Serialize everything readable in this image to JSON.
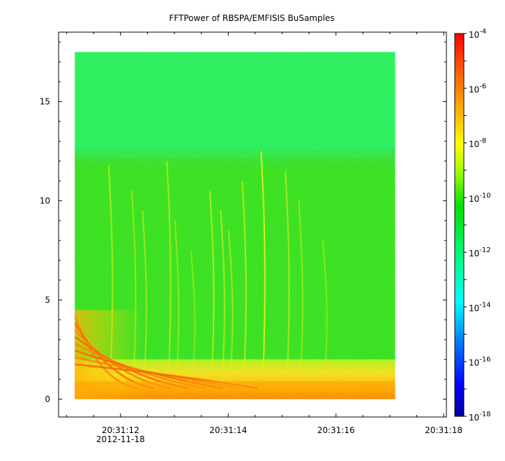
{
  "chart_data": {
    "type": "heatmap",
    "title": "FFTPower of RBSPA/EMFISIS  BuSamples",
    "xlabel": "",
    "ylabel": "",
    "x": {
      "tick_labels": [
        "20:31:12",
        "20:31:14",
        "20:31:16",
        "20:31:18"
      ],
      "tick_values": [
        12,
        14,
        16,
        18
      ],
      "date_label": "2012-11-18",
      "range": [
        10.85,
        18.05
      ],
      "data_start": 11.15,
      "data_end": 17.1
    },
    "y": {
      "tick_labels": [
        "0",
        "5",
        "10",
        "15"
      ],
      "tick_values": [
        0,
        5,
        10,
        15
      ],
      "range": [
        -0.9,
        18.5
      ],
      "data_range": [
        0,
        17.5
      ]
    },
    "colorbar": {
      "scale": "log",
      "range": [
        1e-18,
        0.0001
      ],
      "tick_labels": [
        "10-4",
        "10-6",
        "10-8",
        "10-10",
        "10-12",
        "10-14",
        "10-16",
        "10-18"
      ],
      "tick_exponents": [
        -4,
        -6,
        -8,
        -10,
        -12,
        -14,
        -16,
        -18
      ],
      "colors": [
        "#0000a0",
        "#0000ff",
        "#00a0ff",
        "#00ffff",
        "#00ff80",
        "#00e000",
        "#80ff00",
        "#ffff00",
        "#ffb000",
        "#ff6000",
        "#ff0000"
      ]
    },
    "regions": [
      {
        "freq_range": [
          12.2,
          17.5
        ],
        "level": "~1e-13",
        "color": "#20f060"
      },
      {
        "freq_range": [
          2.0,
          12.2
        ],
        "level": "~1e-11",
        "color": "#30e020"
      },
      {
        "freq_range": [
          0,
          2.0
        ],
        "level": "~1e-8",
        "color": "#f0c010"
      }
    ],
    "chorus_elements": [
      {
        "t": 11.82,
        "top_freq": 11.8,
        "strength": 0.55
      },
      {
        "t": 12.25,
        "top_freq": 10.5,
        "strength": 0.45
      },
      {
        "t": 12.45,
        "top_freq": 9.5,
        "strength": 0.5
      },
      {
        "t": 12.9,
        "top_freq": 12.0,
        "strength": 0.55
      },
      {
        "t": 13.05,
        "top_freq": 9.0,
        "strength": 0.45
      },
      {
        "t": 13.35,
        "top_freq": 7.5,
        "strength": 0.4
      },
      {
        "t": 13.7,
        "top_freq": 10.5,
        "strength": 0.6
      },
      {
        "t": 13.9,
        "top_freq": 9.5,
        "strength": 0.55
      },
      {
        "t": 14.05,
        "top_freq": 8.5,
        "strength": 0.5
      },
      {
        "t": 14.3,
        "top_freq": 11.0,
        "strength": 0.6
      },
      {
        "t": 14.65,
        "top_freq": 12.5,
        "strength": 0.85
      },
      {
        "t": 15.1,
        "top_freq": 11.5,
        "strength": 0.55
      },
      {
        "t": 15.35,
        "top_freq": 10.0,
        "strength": 0.45
      },
      {
        "t": 15.8,
        "top_freq": 8.0,
        "strength": 0.4
      }
    ],
    "grid": false,
    "legend": "colorbar-right"
  }
}
